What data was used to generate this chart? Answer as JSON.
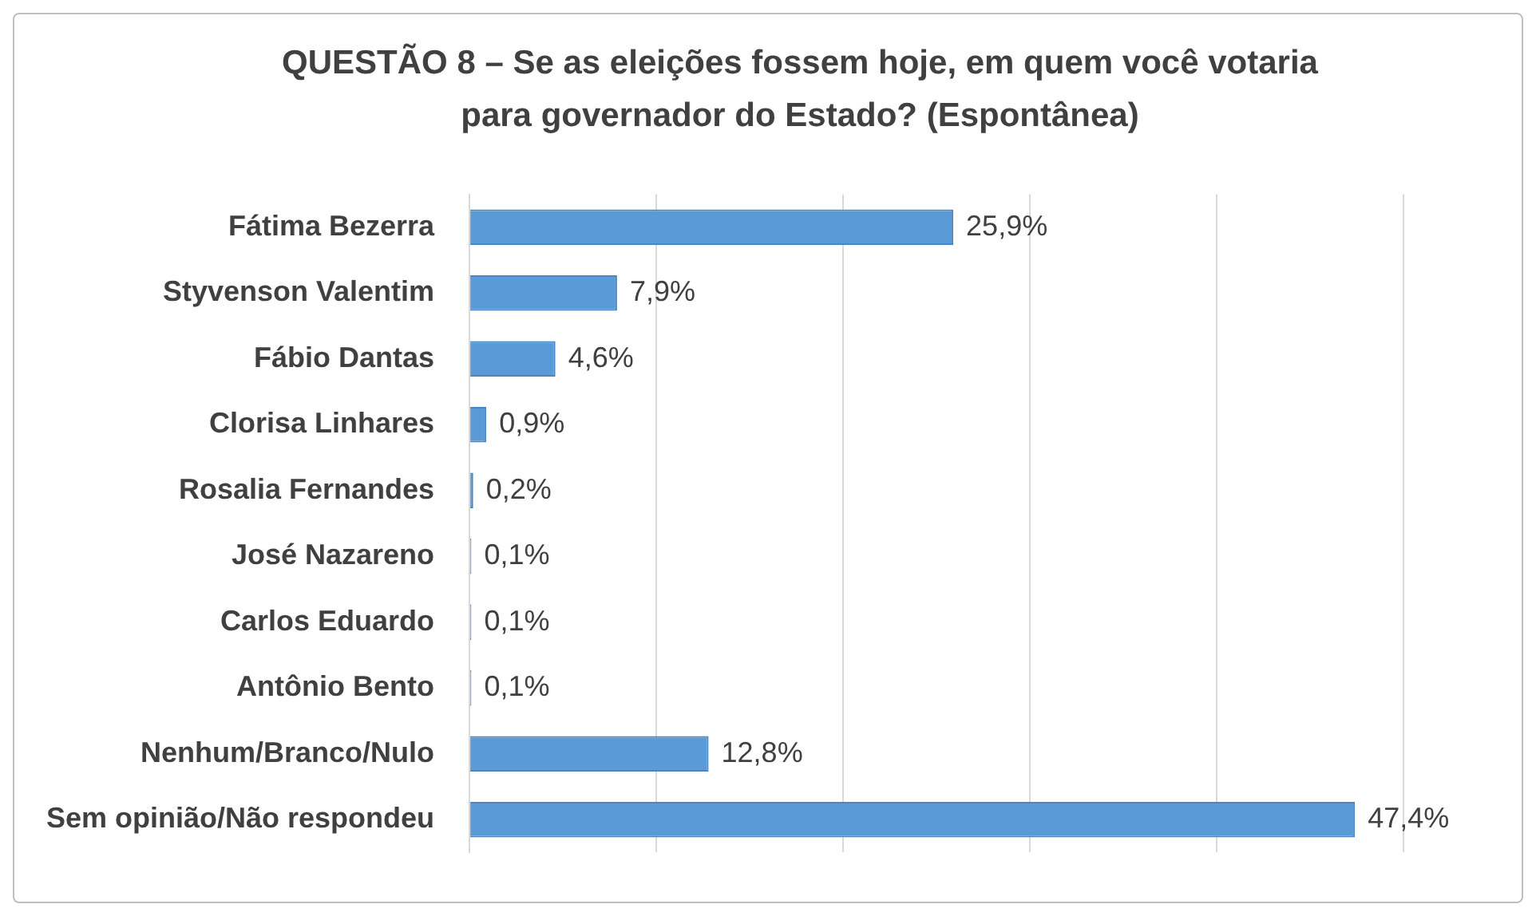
{
  "chart_data": {
    "type": "bar",
    "orientation": "horizontal",
    "title": "QUESTÃO 8 – Se as eleições fossem hoje, em quem você votaria\npara governador do Estado? (Espontânea)",
    "categories": [
      "Fátima Bezerra",
      "Styvenson Valentim",
      "Fábio Dantas",
      "Clorisa Linhares",
      "Rosalia Fernandes",
      "José Nazareno",
      "Carlos Eduardo",
      "Antônio Bento",
      "Nenhum/Branco/Nulo",
      "Sem opinião/Não respondeu"
    ],
    "values": [
      25.9,
      7.9,
      4.6,
      0.9,
      0.2,
      0.1,
      0.1,
      0.1,
      12.8,
      47.4
    ],
    "value_labels": [
      "25,9%",
      "7,9%",
      "4,6%",
      "0,9%",
      "0,2%",
      "0,1%",
      "0,1%",
      "0,1%",
      "12,8%",
      "47,4%"
    ],
    "color": "#5b9bd5",
    "xlim": [
      0,
      50
    ],
    "xticks": [
      {
        "value": 0,
        "label": null
      },
      {
        "value": 10,
        "label": null
      },
      {
        "value": 20,
        "label": null
      },
      {
        "value": 30,
        "label": null
      },
      {
        "value": 40,
        "label": null
      },
      {
        "value": 50,
        "label": null
      }
    ],
    "grid": "x",
    "tick_labels": "y"
  }
}
